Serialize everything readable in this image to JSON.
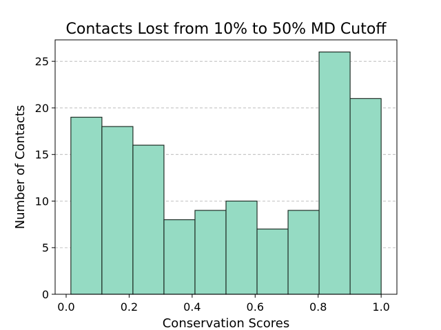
{
  "chart_data": {
    "type": "bar",
    "subtype": "histogram",
    "title": "Contacts Lost from 10% to 50% MD Cutoff",
    "xlabel": "Conservation Scores",
    "ylabel": "Number of Contacts",
    "bin_edges": [
      0.015,
      0.1135,
      0.212,
      0.3105,
      0.409,
      0.5075,
      0.606,
      0.7045,
      0.803,
      0.9015,
      1.0
    ],
    "values": [
      19,
      18,
      16,
      8,
      9,
      10,
      7,
      9,
      26,
      21
    ],
    "xlim": [
      -0.035,
      1.05
    ],
    "ylim": [
      0,
      27.3
    ],
    "xticks": [
      0.0,
      0.2,
      0.4,
      0.6,
      0.8,
      1.0
    ],
    "xtick_labels": [
      "0.0",
      "0.2",
      "0.4",
      "0.6",
      "0.8",
      "1.0"
    ],
    "yticks": [
      0,
      5,
      10,
      15,
      20,
      25
    ],
    "ytick_labels": [
      "0",
      "5",
      "10",
      "15",
      "20",
      "25"
    ],
    "grid": "y-dashed",
    "bar_color": "#95dbc3",
    "edge_color": "#1f2e26"
  }
}
